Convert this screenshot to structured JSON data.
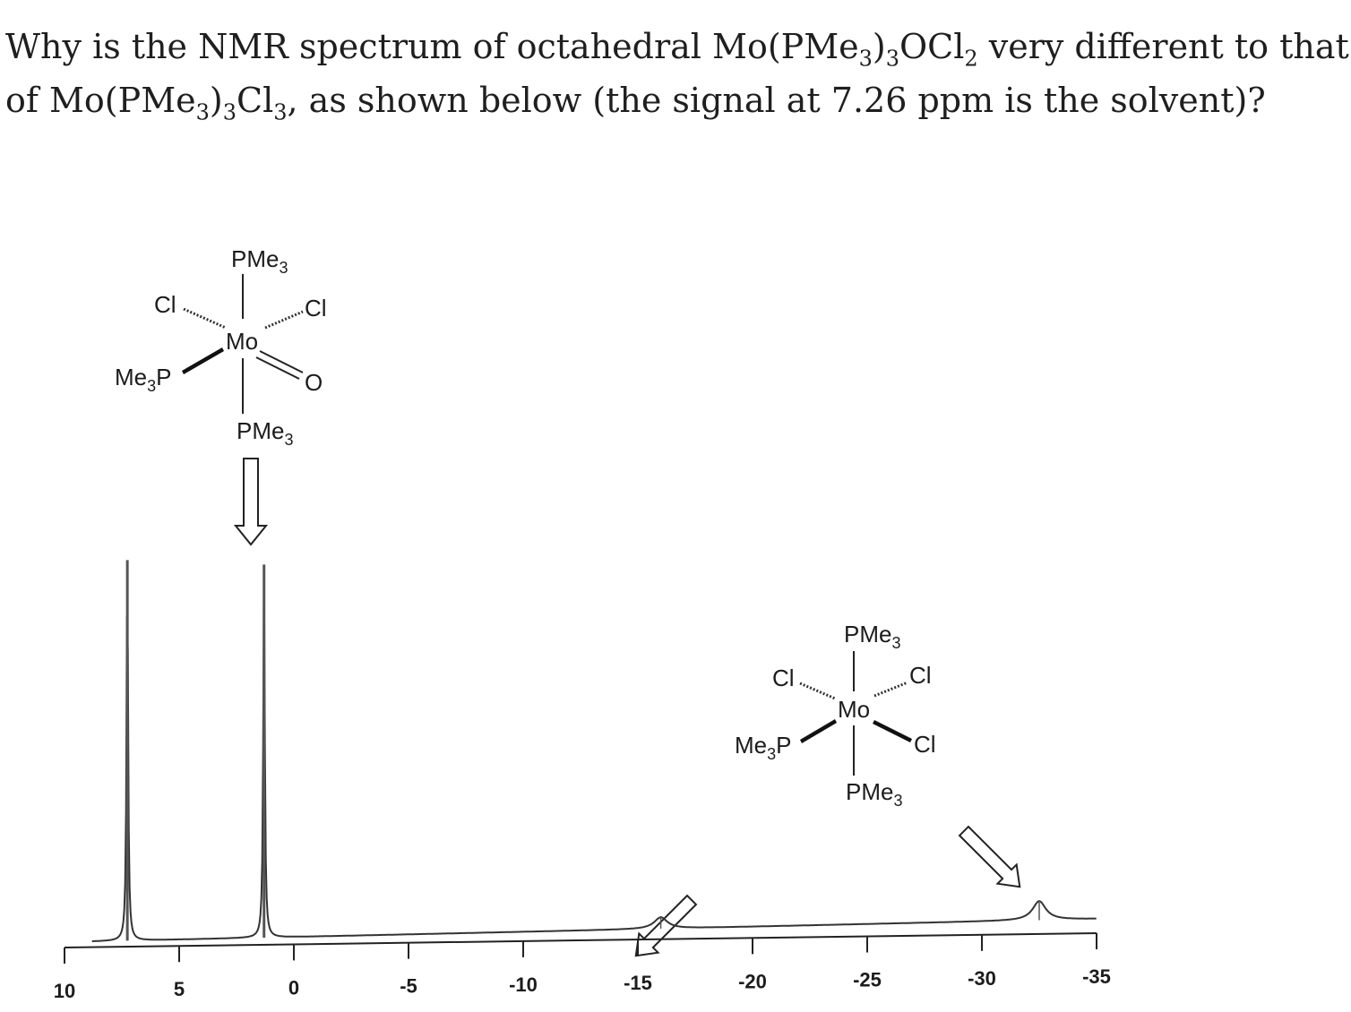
{
  "question": {
    "line1": {
      "a": "Why is the NMR spectrum of octahedral Mo(PMe",
      "s1": "3",
      "b": ")",
      "s2": "3",
      "c": "OCl",
      "s3": "2",
      "d": " very different to that"
    },
    "line2": {
      "a": "of Mo(PMe",
      "s1": "3",
      "b": ")",
      "s2": "3",
      "c": "Cl",
      "s3": "3",
      "d": ", as shown below (the signal at 7.26 ppm is the solvent)?"
    }
  },
  "structure_oxo": {
    "top": "PMe",
    "top_sub": "3",
    "cl_left": "Cl",
    "cl_right": "Cl",
    "metal": "Mo",
    "left_ligand": "Me",
    "left_ligand_sub": "3",
    "left_ligand_end": "P",
    "oxo": "O",
    "bottom": "PMe",
    "bottom_sub": "3"
  },
  "structure_trichloride": {
    "top": "PMe",
    "top_sub": "3",
    "cl_left": "Cl",
    "cl_right": "Cl",
    "metal": "Mo",
    "left_ligand": "Me",
    "left_ligand_sub": "3",
    "left_ligand_end": "P",
    "cl_lower_right": "Cl",
    "bottom": "PMe",
    "bottom_sub": "3"
  },
  "chart_data": {
    "type": "line",
    "x_axis_ticks": [
      "10",
      "5",
      "0",
      "-5",
      "-10",
      "-15",
      "-20",
      "-25",
      "-30",
      "-35"
    ],
    "xlim": [
      10,
      -35
    ],
    "x_direction": "decreasing left to right (ppm)",
    "grid": false,
    "peaks": [
      {
        "shift_ppm": 7.26,
        "relative_height": 1.0,
        "note": "solvent"
      },
      {
        "shift_ppm": 1.3,
        "relative_height": 0.98,
        "assigned_to": "Mo(PMe3)3OCl2"
      },
      {
        "shift_ppm": -16.0,
        "relative_height": 0.03,
        "assigned_to": "Mo(PMe3)3Cl3"
      },
      {
        "shift_ppm": -32.5,
        "relative_height": 0.05,
        "assigned_to": "Mo(PMe3)3Cl3"
      }
    ]
  }
}
